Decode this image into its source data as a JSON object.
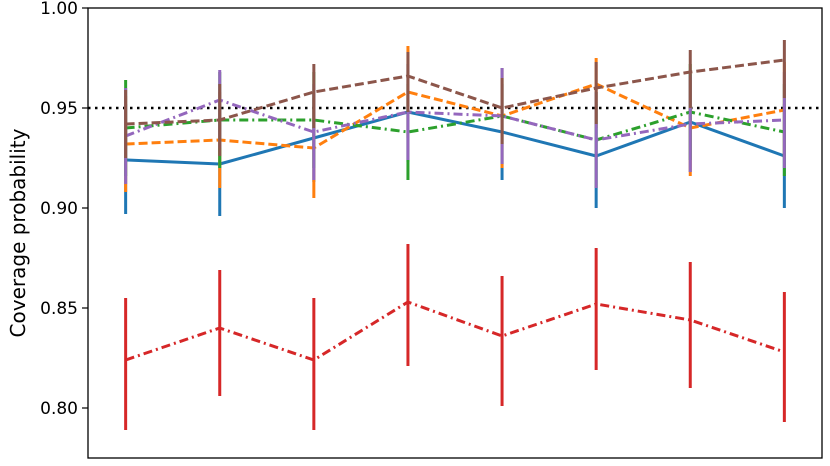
{
  "chart_data": {
    "type": "line",
    "ylabel": "Coverage probability",
    "xlabel": "",
    "ylim": [
      0.775,
      1.0
    ],
    "yticks": [
      0.8,
      0.85,
      0.9,
      0.95,
      1.0
    ],
    "ytick_labels": [
      "0.80",
      "0.85",
      "0.90",
      "0.95",
      "1.00"
    ],
    "x": [
      1,
      2,
      3,
      4,
      5,
      6,
      7,
      8
    ],
    "xlim": [
      0.6,
      8.4
    ],
    "reference_line": {
      "y": 0.95,
      "style": "dotted",
      "color": "#000000"
    },
    "grid": false,
    "legend": "none",
    "series": [
      {
        "color": "#1f77b4",
        "dash": "solid",
        "values": [
          0.924,
          0.922,
          0.935,
          0.948,
          0.938,
          0.926,
          0.943,
          0.926
        ],
        "err_low": [
          0.897,
          0.896,
          0.913,
          0.923,
          0.914,
          0.9,
          0.918,
          0.9
        ],
        "err_high": [
          0.952,
          0.95,
          0.957,
          0.972,
          0.962,
          0.952,
          0.967,
          0.952
        ]
      },
      {
        "color": "#ff7f0e",
        "dash": "dashed",
        "values": [
          0.932,
          0.934,
          0.93,
          0.958,
          0.946,
          0.962,
          0.94,
          0.949
        ],
        "err_low": [
          0.908,
          0.91,
          0.905,
          0.935,
          0.92,
          0.94,
          0.916,
          0.925
        ],
        "err_high": [
          0.956,
          0.958,
          0.955,
          0.981,
          0.97,
          0.975,
          0.964,
          0.973
        ]
      },
      {
        "color": "#2ca02c",
        "dash": "dashdot",
        "values": [
          0.94,
          0.944,
          0.944,
          0.938,
          0.946,
          0.934,
          0.948,
          0.938
        ],
        "err_low": [
          0.916,
          0.92,
          0.92,
          0.914,
          0.922,
          0.91,
          0.924,
          0.916
        ],
        "err_high": [
          0.964,
          0.968,
          0.968,
          0.962,
          0.97,
          0.958,
          0.972,
          0.962
        ]
      },
      {
        "color": "#d62728",
        "dash": "dashdot",
        "values": [
          0.824,
          0.84,
          0.824,
          0.853,
          0.836,
          0.852,
          0.844,
          0.828
        ],
        "err_low": [
          0.789,
          0.806,
          0.789,
          0.821,
          0.801,
          0.819,
          0.81,
          0.793
        ],
        "err_high": [
          0.855,
          0.869,
          0.855,
          0.882,
          0.866,
          0.88,
          0.873,
          0.858
        ]
      },
      {
        "color": "#9467bd",
        "dash": "dashdot",
        "values": [
          0.936,
          0.954,
          0.938,
          0.948,
          0.946,
          0.934,
          0.942,
          0.944
        ],
        "err_low": [
          0.912,
          0.93,
          0.914,
          0.924,
          0.922,
          0.91,
          0.918,
          0.92
        ],
        "err_high": [
          0.96,
          0.969,
          0.962,
          0.972,
          0.97,
          0.958,
          0.966,
          0.968
        ]
      },
      {
        "color": "#8c564b",
        "dash": "dashed",
        "values": [
          0.942,
          0.944,
          0.958,
          0.966,
          0.95,
          0.96,
          0.968,
          0.974
        ],
        "err_low": [
          0.925,
          0.926,
          0.94,
          0.948,
          0.932,
          0.942,
          0.95,
          0.955
        ],
        "err_high": [
          0.959,
          0.962,
          0.972,
          0.978,
          0.965,
          0.973,
          0.979,
          0.984
        ]
      }
    ]
  }
}
